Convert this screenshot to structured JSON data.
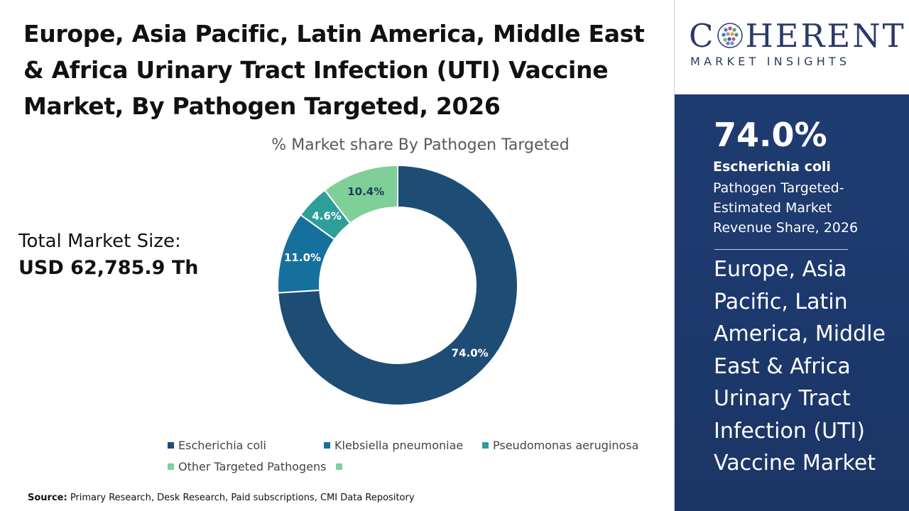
{
  "title": "Europe, Asia Pacific, Latin America, Middle East & Africa Urinary Tract Infection (UTI) Vaccine Market, By Pathogen Targeted, 2026",
  "market_size": {
    "label": "Total Market Size:",
    "value": "USD 62,785.9 Th"
  },
  "source": {
    "label": "Source:",
    "text": " Primary Research, Desk Research, Paid subscriptions, CMI Data Repository"
  },
  "logo": {
    "brand_left": "C",
    "brand_right": "HERENT",
    "tagline": "MARKET INSIGHTS"
  },
  "highlight": {
    "value": "74.0%",
    "segment": "Escherichia coli",
    "description": "Pathogen Targeted- Estimated Market Revenue Share, 2026"
  },
  "side_title": "Europe, Asia Pacific, Latin America, Middle East & Africa Urinary Tract Infection (UTI) Vaccine Market",
  "colors": {
    "brand_navy": "#2a3a67",
    "panel_blue": "#1f3c72"
  },
  "chart_data": {
    "type": "pie",
    "subtype": "donut",
    "title": "% Market share By Pathogen Targeted",
    "categories": [
      "Escherichia coli",
      "Klebsiella pneumoniae",
      "Pseudomonas aeruginosa",
      "Other Targeted Pathogens"
    ],
    "values": [
      74.0,
      11.0,
      4.6,
      10.4
    ],
    "labels": [
      "74.0%",
      "11.0%",
      "4.6%",
      "10.4%"
    ],
    "colors": [
      "#1d4d75",
      "#16709e",
      "#2e9e9a",
      "#7fcf98"
    ],
    "legend_position": "bottom"
  }
}
